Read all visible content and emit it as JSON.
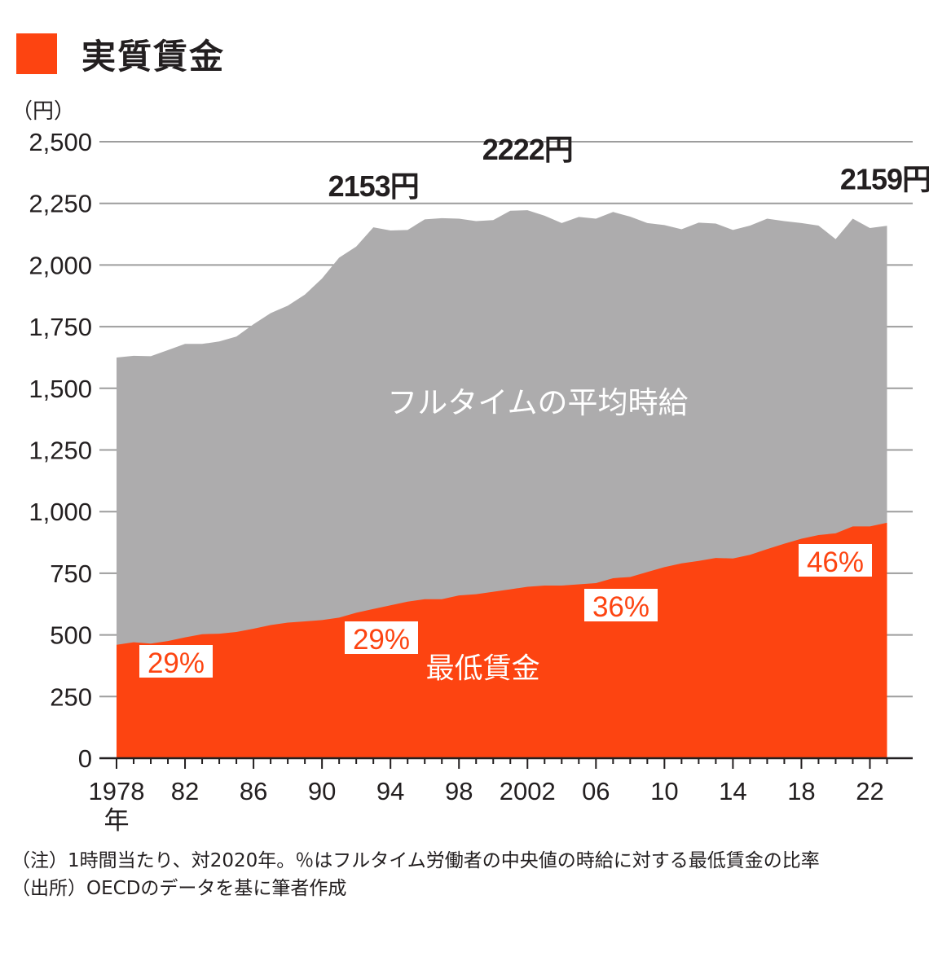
{
  "title": "実質賃金",
  "colors": {
    "accent": "#fd4411",
    "fulltime_area": "#adacad",
    "grid": "#9d9d9d",
    "text": "#231f20"
  },
  "notes": [
    "（注）1時間当たり、対2020年。％はフルタイム労働者の中央値の時給に対する最低賃金の比率",
    "（出所）OECDのデータを基に筆者作成"
  ],
  "chart_data": {
    "type": "area",
    "ylabel": "（円）",
    "ylim": [
      0,
      2500
    ],
    "yticks": [
      0,
      250,
      500,
      750,
      1000,
      1250,
      1500,
      1750,
      2000,
      2250,
      2500
    ],
    "ytick_labels": [
      "0",
      "250",
      "500",
      "750",
      "1,000",
      "1,250",
      "1,500",
      "1,750",
      "2,000",
      "2,250",
      "2,500"
    ],
    "xlim": [
      1977,
      2024.5
    ],
    "xticks": [
      1978,
      1982,
      1986,
      1990,
      1994,
      1998,
      2002,
      2006,
      2010,
      2014,
      2018,
      2022
    ],
    "xtick_labels": [
      "1978",
      "82",
      "86",
      "90",
      "94",
      "98",
      "2002",
      "06",
      "10",
      "14",
      "18",
      "22"
    ],
    "x_unit": "年",
    "grid": true,
    "x": [
      1978,
      1979,
      1980,
      1981,
      1982,
      1983,
      1984,
      1985,
      1986,
      1987,
      1988,
      1989,
      1990,
      1991,
      1992,
      1993,
      1994,
      1995,
      1996,
      1997,
      1998,
      1999,
      2000,
      2001,
      2002,
      2003,
      2004,
      2005,
      2006,
      2007,
      2008,
      2009,
      2010,
      2011,
      2012,
      2013,
      2014,
      2015,
      2016,
      2017,
      2018,
      2019,
      2020,
      2021,
      2022,
      2023
    ],
    "series": [
      {
        "name": "フルタイムの平均時給",
        "values": [
          1625,
          1632,
          1630,
          1655,
          1680,
          1680,
          1690,
          1710,
          1760,
          1805,
          1835,
          1880,
          1945,
          2030,
          2075,
          2153,
          2140,
          2142,
          2185,
          2190,
          2188,
          2178,
          2182,
          2220,
          2222,
          2200,
          2170,
          2195,
          2188,
          2215,
          2196,
          2170,
          2162,
          2145,
          2172,
          2168,
          2142,
          2160,
          2188,
          2178,
          2170,
          2160,
          2105,
          2188,
          2150,
          2159
        ]
      },
      {
        "name": "最低賃金",
        "values": [
          460,
          470,
          465,
          475,
          490,
          503,
          505,
          512,
          525,
          540,
          550,
          555,
          560,
          570,
          590,
          605,
          620,
          635,
          645,
          645,
          660,
          665,
          675,
          685,
          695,
          700,
          700,
          705,
          710,
          730,
          735,
          755,
          775,
          790,
          800,
          812,
          810,
          825,
          848,
          870,
          890,
          905,
          912,
          940,
          940,
          955
        ]
      }
    ],
    "annotations": [
      {
        "text": "2153円",
        "x": 1993,
        "y": 2153
      },
      {
        "text": "2222円",
        "x": 2002,
        "y": 2222
      },
      {
        "text": "2159円",
        "x": 2023,
        "y": 2159
      },
      {
        "text": "29%",
        "x": 1978,
        "y": 460
      },
      {
        "text": "29%",
        "x": 1993,
        "y": 605
      },
      {
        "text": "36%",
        "x": 2007,
        "y": 730
      },
      {
        "text": "46%",
        "x": 2021,
        "y": 940
      }
    ],
    "area_labels": [
      {
        "text": "フルタイムの平均時給",
        "series": 0
      },
      {
        "text": "最低賃金",
        "series": 1
      }
    ]
  }
}
